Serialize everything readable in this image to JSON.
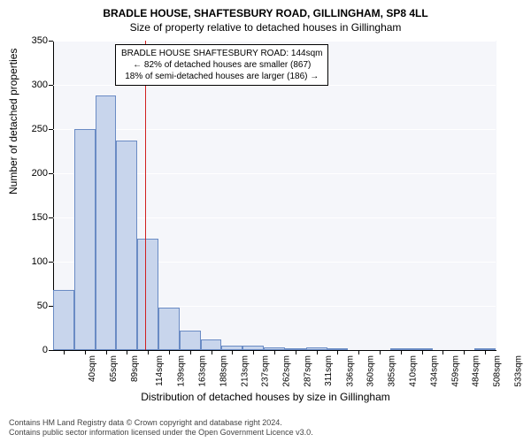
{
  "title": "BRADLE HOUSE, SHAFTESBURY ROAD, GILLINGHAM, SP8 4LL",
  "subtitle": "Size of property relative to detached houses in Gillingham",
  "ylabel": "Number of detached properties",
  "xlabel": "Distribution of detached houses by size in Gillingham",
  "chart": {
    "type": "histogram",
    "bar_fill": "#c8d5ec",
    "bar_stroke": "#6a8bc4",
    "background": "#f5f6fa",
    "grid_color": "#ffffff",
    "ylim": [
      0,
      350
    ],
    "ytick_step": 50,
    "yticks": [
      0,
      50,
      100,
      150,
      200,
      250,
      300,
      350
    ],
    "x_labels": [
      "40sqm",
      "65sqm",
      "89sqm",
      "114sqm",
      "139sqm",
      "163sqm",
      "188sqm",
      "213sqm",
      "237sqm",
      "262sqm",
      "287sqm",
      "311sqm",
      "336sqm",
      "360sqm",
      "385sqm",
      "410sqm",
      "434sqm",
      "459sqm",
      "484sqm",
      "508sqm",
      "533sqm"
    ],
    "values": [
      68,
      250,
      288,
      237,
      126,
      48,
      22,
      12,
      5,
      5,
      3,
      2,
      3,
      1,
      0,
      0,
      1,
      1,
      0,
      0,
      1
    ],
    "reference_line_value": 144,
    "reference_line_color": "#d02020",
    "x_domain": [
      40,
      540
    ]
  },
  "annotation": {
    "line1": "BRADLE HOUSE SHAFTESBURY ROAD: 144sqm",
    "line2": "← 82% of detached houses are smaller (867)",
    "line3": "18% of semi-detached houses are larger (186) →",
    "border_color": "#000000",
    "background": "#ffffff"
  },
  "credits": {
    "line1": "Contains HM Land Registry data © Crown copyright and database right 2024.",
    "line2": "Contains public sector information licensed under the Open Government Licence v3.0."
  }
}
